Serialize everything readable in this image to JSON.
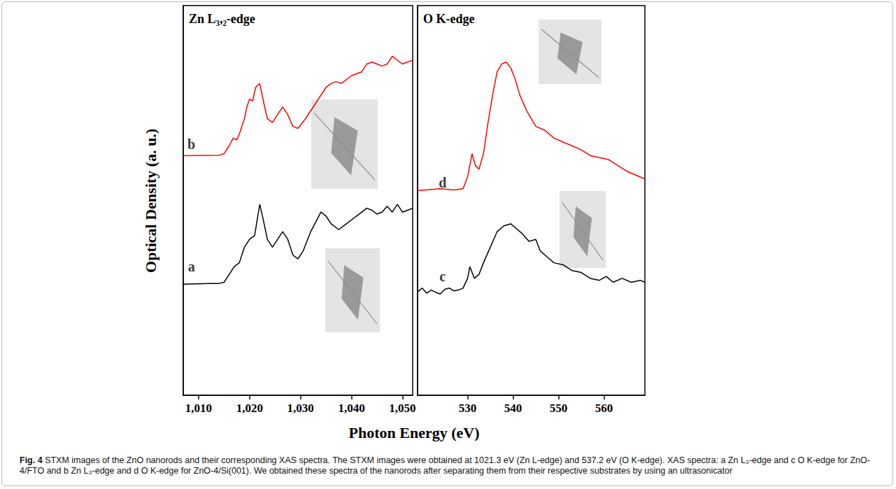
{
  "figure": {
    "label": "Fig. 4",
    "caption": "STXM images of the ZnO nanorods and their corresponding XAS spectra. The STXM images were obtained at 1021.3 eV (Zn L-edge) and 537.2 eV (O K-edge). XAS spectra: a Zn L₃-edge and c O K-edge for ZnO-4/FTO and b Zn L₃-edge and d O K-edge for ZnO-4/Si(001). We obtained these spectra of the nanorods after separating them from their respective substrates by using an ultrasonicator",
    "xlabel": "Photon Energy (eV)",
    "ylabel": "Optical Density (a. u.)"
  },
  "chart_data": [
    {
      "type": "line",
      "title": "Zn L₃,₂-edge",
      "xlim": [
        1007,
        1052
      ],
      "xticks": [
        1010,
        1020,
        1030,
        1040,
        1050
      ],
      "ylim": [
        0,
        100
      ],
      "yticks": [],
      "tick_labels": "x",
      "series": [
        {
          "color": "#000000",
          "x": [
            1007,
            1012,
            1014,
            1015,
            1016,
            1017,
            1018,
            1019,
            1020,
            1021,
            1021.5,
            1022,
            1022.7,
            1023.5,
            1024.5,
            1025.5,
            1026.5,
            1027.5,
            1028.5,
            1029.5,
            1030.5,
            1032,
            1034,
            1035,
            1036,
            1037.5,
            1039,
            1041,
            1043,
            1044,
            1045,
            1046,
            1047,
            1048,
            1049,
            1050,
            1051,
            1052
          ],
          "values": [
            28.5,
            28.7,
            28.7,
            29.0,
            31,
            33,
            34,
            38,
            40,
            41,
            45,
            49,
            45,
            40,
            38,
            40,
            42,
            40,
            36,
            35,
            37,
            42,
            47,
            46,
            44,
            42.5,
            44,
            46,
            48,
            47.5,
            46.5,
            47,
            48.5,
            47,
            49,
            47,
            47.5,
            48
          ]
        },
        {
          "color": "#ff0000",
          "x": [
            1007,
            1014,
            1015,
            1016,
            1016.8,
            1017.5,
            1018,
            1019,
            1019.5,
            1020,
            1020.6,
            1021.2,
            1022,
            1022.8,
            1023.5,
            1024.5,
            1025.5,
            1026.5,
            1027.5,
            1028.5,
            1029.5,
            1031,
            1033,
            1035,
            1036,
            1037,
            1038,
            1040,
            1042,
            1043,
            1044,
            1045,
            1046,
            1047,
            1048,
            1049,
            1050,
            1051,
            1052
          ],
          "values": [
            61.5,
            61.6,
            62,
            64,
            66,
            65.5,
            67,
            71,
            74,
            76,
            75.5,
            79,
            80,
            75,
            71,
            70,
            72,
            74,
            72,
            69,
            68.5,
            71,
            75,
            79,
            80,
            80.5,
            80,
            82,
            83,
            85,
            85.5,
            85,
            84.5,
            85,
            87,
            86,
            85,
            85.5,
            86
          ]
        }
      ],
      "annotations": [
        {
          "text": "b",
          "x": 1008.6,
          "y": 64.5
        },
        {
          "text": "a",
          "x": 1008.6,
          "y": 33
        }
      ]
    },
    {
      "type": "line",
      "title": "O K-edge",
      "xlim": [
        519,
        569
      ],
      "xticks": [
        530,
        540,
        550,
        560
      ],
      "ylim": [
        0,
        100
      ],
      "yticks": [],
      "tick_labels": "x",
      "series": [
        {
          "color": "#000000",
          "x": [
            519,
            520,
            521,
            522,
            523,
            524,
            525,
            526,
            527,
            528,
            529,
            530,
            530.5,
            531.5,
            532.5,
            533.5,
            535,
            536.5,
            538,
            539.5,
            540.5,
            542,
            543.5,
            545,
            546,
            547.5,
            549,
            551,
            553,
            555,
            557,
            559,
            560.5,
            562,
            564,
            566,
            568,
            569
          ],
          "values": [
            26.5,
            27.5,
            26.2,
            27,
            26.4,
            26,
            27.2,
            27.5,
            26.8,
            27,
            27.5,
            30,
            33,
            30,
            31,
            34,
            38,
            42,
            43.5,
            44,
            43,
            41.5,
            39.5,
            40,
            37,
            35.5,
            34,
            33.5,
            32,
            31.5,
            30,
            29.5,
            30.5,
            29,
            30,
            29,
            29.5,
            29
          ]
        },
        {
          "color": "#ff0000",
          "x": [
            519,
            524,
            527,
            529,
            530,
            531,
            531.7,
            532.5,
            533.5,
            534.5,
            535.5,
            536.5,
            537.5,
            538.5,
            539.5,
            540.5,
            541.5,
            543,
            545,
            547,
            549,
            551,
            553,
            555,
            557,
            559,
            561,
            563,
            565,
            567,
            569
          ],
          "values": [
            52.5,
            53,
            52.7,
            53,
            56,
            62,
            59,
            58,
            62,
            70,
            77,
            83,
            85,
            85.5,
            84,
            81,
            77,
            73,
            69,
            68,
            66,
            65,
            64,
            63,
            61.5,
            61,
            60.5,
            59,
            57.5,
            56.5,
            55.5
          ]
        }
      ],
      "annotations": [
        {
          "text": "d",
          "x": 524.5,
          "y": 54.5
        },
        {
          "text": "c",
          "x": 524.5,
          "y": 30.5
        }
      ]
    }
  ]
}
